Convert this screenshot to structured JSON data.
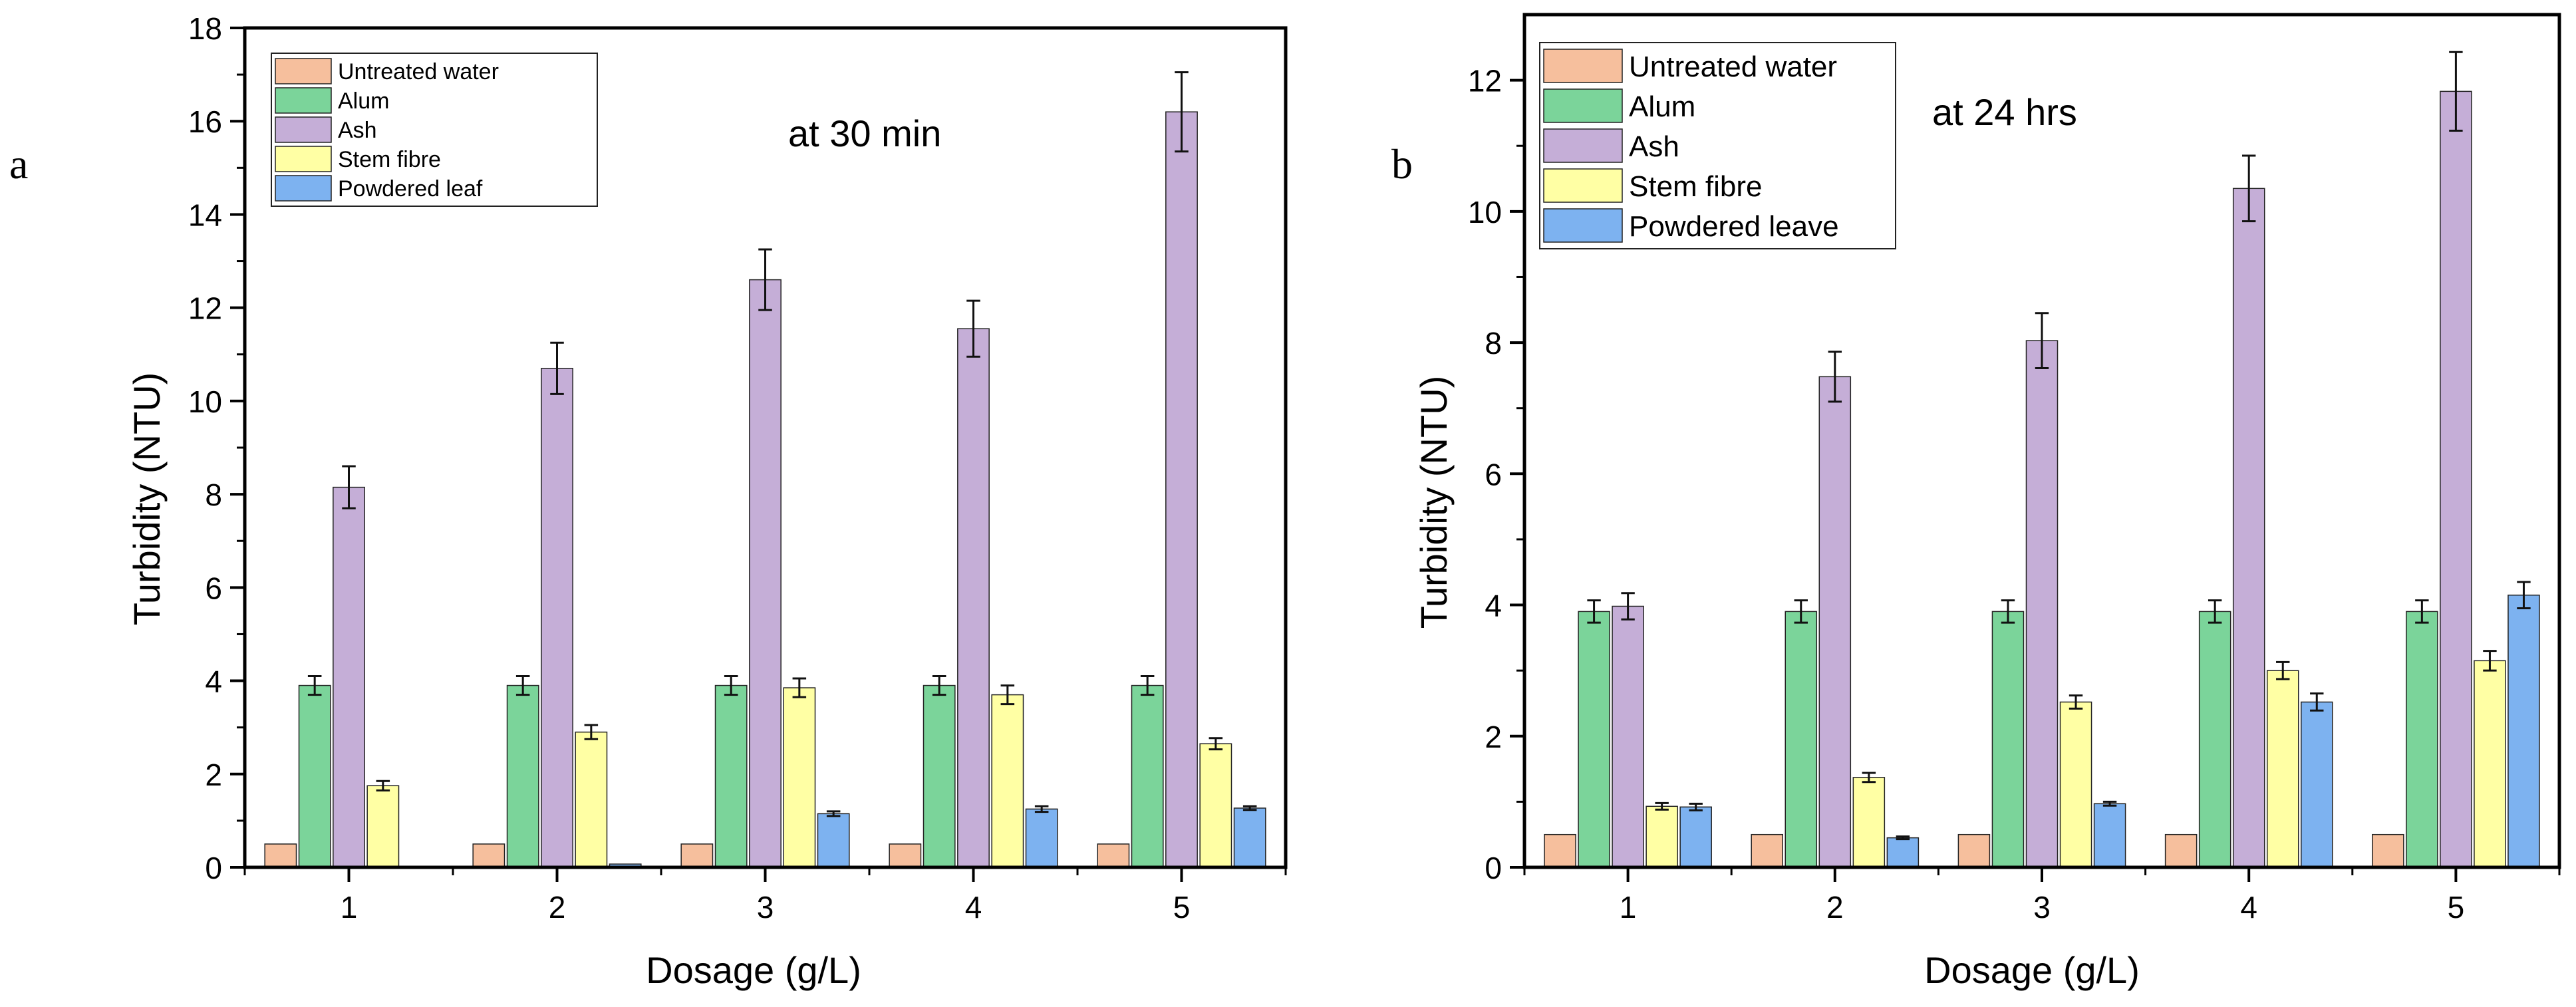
{
  "figure": {
    "panels": [
      {
        "letter": "a",
        "annotation": "at 30 min"
      },
      {
        "letter": "b",
        "annotation": "at 24 hrs"
      }
    ]
  },
  "colors": {
    "series": [
      "#F6BF9D",
      "#7BD49A",
      "#C5AED7",
      "#FFFFA4",
      "#7DB2F0"
    ],
    "axis": "#000000"
  },
  "chart_data": [
    {
      "type": "bar",
      "title": "",
      "annotation": "at 30 min",
      "xlabel": "Dosage (g/L)",
      "ylabel": "Turbidity (NTU)",
      "categories": [
        "1",
        "2",
        "3",
        "4",
        "5"
      ],
      "ylim": [
        0,
        18
      ],
      "yticks": [
        0,
        2,
        4,
        6,
        8,
        10,
        12,
        14,
        16,
        18
      ],
      "grid": false,
      "legend_position": "top-left",
      "error_bars": true,
      "series": [
        {
          "name": "Untreated water",
          "values": [
            0.5,
            0.5,
            0.5,
            0.5,
            0.5
          ],
          "errors": [
            0,
            0,
            0,
            0,
            0
          ]
        },
        {
          "name": "Alum",
          "values": [
            3.9,
            3.9,
            3.9,
            3.9,
            3.9
          ],
          "errors": [
            0.2,
            0.2,
            0.2,
            0.2,
            0.2
          ]
        },
        {
          "name": "Ash",
          "values": [
            8.15,
            10.7,
            12.6,
            11.55,
            16.2
          ],
          "errors": [
            0.45,
            0.55,
            0.65,
            0.6,
            0.85
          ]
        },
        {
          "name": "Stem fibre",
          "values": [
            1.75,
            2.9,
            3.85,
            3.7,
            2.65
          ],
          "errors": [
            0.1,
            0.15,
            0.2,
            0.2,
            0.12
          ]
        },
        {
          "name": "Powdered leaf",
          "values": [
            0,
            0.07,
            1.15,
            1.25,
            1.27
          ],
          "errors": [
            0,
            0,
            0.05,
            0.06,
            0.04
          ]
        }
      ]
    },
    {
      "type": "bar",
      "title": "",
      "annotation": "at 24 hrs",
      "xlabel": "Dosage (g/L)",
      "ylabel": "Turbidity (NTU)",
      "categories": [
        "1",
        "2",
        "3",
        "4",
        "5"
      ],
      "ylim": [
        0,
        13
      ],
      "yticks": [
        0,
        2,
        4,
        6,
        8,
        10,
        12
      ],
      "grid": false,
      "legend_position": "top-left",
      "error_bars": true,
      "series": [
        {
          "name": "Untreated water",
          "values": [
            0.5,
            0.5,
            0.5,
            0.5,
            0.5
          ],
          "errors": [
            0,
            0,
            0,
            0,
            0
          ]
        },
        {
          "name": "Alum",
          "values": [
            3.9,
            3.9,
            3.9,
            3.9,
            3.9
          ],
          "errors": [
            0.17,
            0.17,
            0.17,
            0.17,
            0.17
          ]
        },
        {
          "name": "Ash",
          "values": [
            3.98,
            7.48,
            8.03,
            10.35,
            11.83
          ],
          "errors": [
            0.2,
            0.38,
            0.42,
            0.5,
            0.6
          ]
        },
        {
          "name": "Stem fibre",
          "values": [
            0.93,
            1.37,
            2.52,
            3.0,
            3.15
          ],
          "errors": [
            0.05,
            0.07,
            0.1,
            0.13,
            0.15
          ]
        },
        {
          "name": "Powdered leave",
          "values": [
            0.92,
            0.45,
            0.97,
            2.52,
            4.15
          ],
          "errors": [
            0.05,
            0.02,
            0.03,
            0.13,
            0.2
          ]
        }
      ]
    }
  ]
}
